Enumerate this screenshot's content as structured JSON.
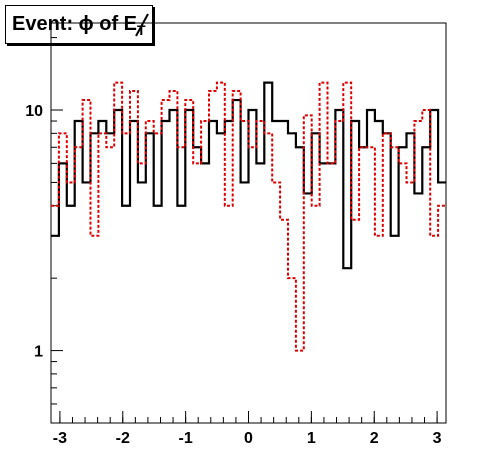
{
  "title": {
    "text": "Event: ϕ of E",
    "subscript": "T"
  },
  "chart_data": {
    "type": "step",
    "title": "Event: ϕ of E_T",
    "xlabel": "",
    "ylabel": "",
    "xlim": [
      -3.1416,
      3.1416
    ],
    "ylim": [
      0.5,
      23
    ],
    "yscale": "log",
    "x_ticks": [
      -3,
      -2,
      -1,
      0,
      1,
      2,
      3
    ],
    "x_tick_labels": [
      "-3",
      "-2",
      "-1",
      "0",
      "1",
      "2",
      "3"
    ],
    "y_ticks": [
      1,
      10
    ],
    "y_tick_labels": [
      "1",
      "10"
    ],
    "nbins": 50,
    "series": [
      {
        "color": "#000000",
        "style": "solid",
        "values": [
          3,
          6,
          4,
          9,
          5,
          8,
          9,
          8,
          10,
          4,
          9,
          5,
          8,
          4,
          9,
          10,
          4,
          10,
          7,
          6,
          9,
          8,
          9,
          11,
          5,
          10,
          6,
          13,
          9,
          9,
          8,
          7,
          4.5,
          8,
          6,
          6,
          10,
          2.2,
          9,
          7,
          10,
          9,
          8,
          3,
          7,
          8,
          4.5,
          7,
          10,
          5
        ]
      },
      {
        "color": "#dd0000",
        "style": "dotted",
        "values": [
          4,
          8,
          5,
          7,
          11,
          3,
          8,
          7,
          13,
          8,
          12,
          6,
          9,
          8,
          11,
          12,
          7,
          11,
          6,
          9,
          12,
          13,
          4,
          12,
          9,
          7,
          9,
          8,
          5,
          3.5,
          2,
          1,
          9.5,
          4,
          13,
          6,
          9,
          13,
          3.5,
          7,
          7,
          3,
          8,
          7,
          6,
          5,
          9,
          10,
          3,
          4
        ]
      }
    ]
  }
}
